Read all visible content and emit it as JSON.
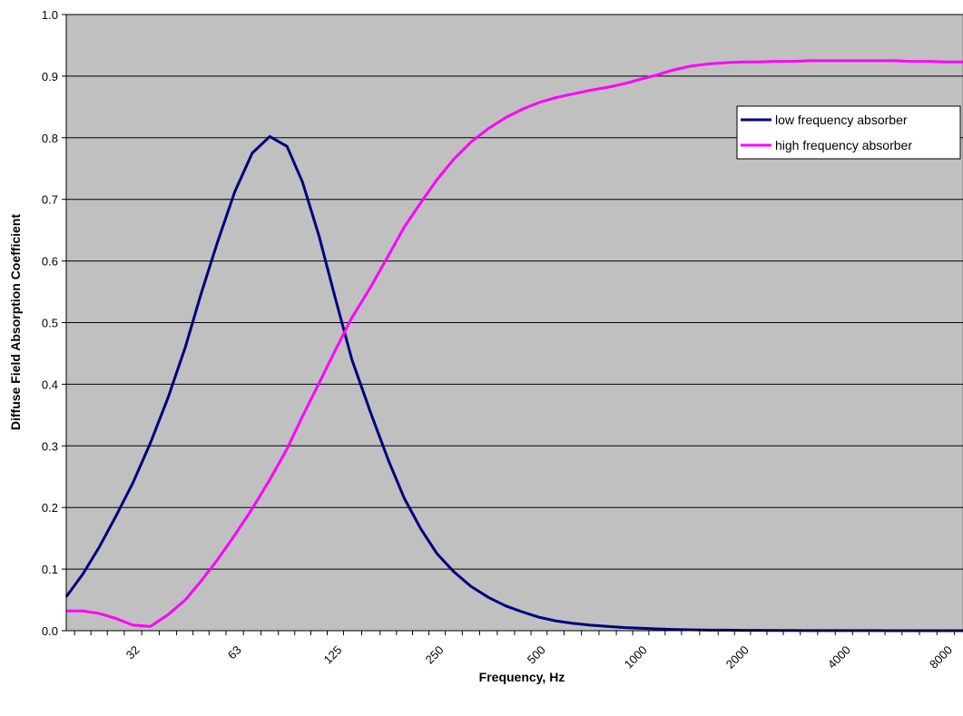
{
  "chart_data": {
    "type": "line",
    "title": "",
    "xlabel": "Frequency, Hz",
    "ylabel": "Diffuse Field Absorption Coefficient",
    "x_scale": "log",
    "ylim": [
      0,
      1.0
    ],
    "yticks": [
      "0.0",
      "0.1",
      "0.2",
      "0.3",
      "0.4",
      "0.5",
      "0.6",
      "0.7",
      "0.8",
      "0.9",
      "1.0"
    ],
    "xtick_labels": [
      "32",
      "63",
      "125",
      "250",
      "500",
      "1000",
      "2000",
      "4000",
      "8000"
    ],
    "grid": "horizontal",
    "legend_position": "top-right",
    "plot_background": "#c0c0c0",
    "x": [
      20,
      22.4,
      25,
      28,
      31.5,
      35.5,
      40,
      45,
      50,
      56,
      63,
      71,
      80,
      90,
      100,
      112,
      125,
      140,
      160,
      180,
      200,
      224,
      250,
      280,
      315,
      355,
      400,
      450,
      500,
      560,
      630,
      710,
      800,
      900,
      1000,
      1120,
      1250,
      1400,
      1600,
      1800,
      2000,
      2240,
      2500,
      2800,
      3150,
      3550,
      4000,
      4500,
      5000,
      5600,
      6300,
      7100,
      8000,
      9000
    ],
    "series": [
      {
        "name": "low frequency absorber",
        "color": "#000080",
        "values": [
          0.055,
          0.092,
          0.135,
          0.185,
          0.24,
          0.305,
          0.378,
          0.46,
          0.545,
          0.63,
          0.712,
          0.775,
          0.802,
          0.786,
          0.728,
          0.64,
          0.54,
          0.44,
          0.35,
          0.275,
          0.215,
          0.165,
          0.125,
          0.096,
          0.072,
          0.054,
          0.04,
          0.03,
          0.022,
          0.016,
          0.012,
          0.009,
          0.007,
          0.005,
          0.004,
          0.003,
          0.002,
          0.0015,
          0.001,
          0.001,
          0.0005,
          0.0005,
          0.0003,
          0.0003,
          0.0002,
          0.0002,
          0.0001,
          0.0001,
          0.0001,
          0,
          0,
          0,
          0,
          0
        ]
      },
      {
        "name": "high frequency absorber",
        "color": "#ff00ff",
        "values": [
          0.032,
          0.032,
          0.028,
          0.02,
          0.009,
          0.007,
          0.026,
          0.05,
          0.08,
          0.115,
          0.155,
          0.198,
          0.245,
          0.295,
          0.348,
          0.402,
          0.455,
          0.508,
          0.56,
          0.61,
          0.655,
          0.695,
          0.732,
          0.765,
          0.793,
          0.815,
          0.833,
          0.847,
          0.857,
          0.865,
          0.871,
          0.877,
          0.882,
          0.888,
          0.895,
          0.902,
          0.91,
          0.916,
          0.92,
          0.922,
          0.923,
          0.923,
          0.924,
          0.924,
          0.925,
          0.925,
          0.925,
          0.925,
          0.925,
          0.925,
          0.924,
          0.924,
          0.923,
          0.923
        ]
      }
    ]
  }
}
